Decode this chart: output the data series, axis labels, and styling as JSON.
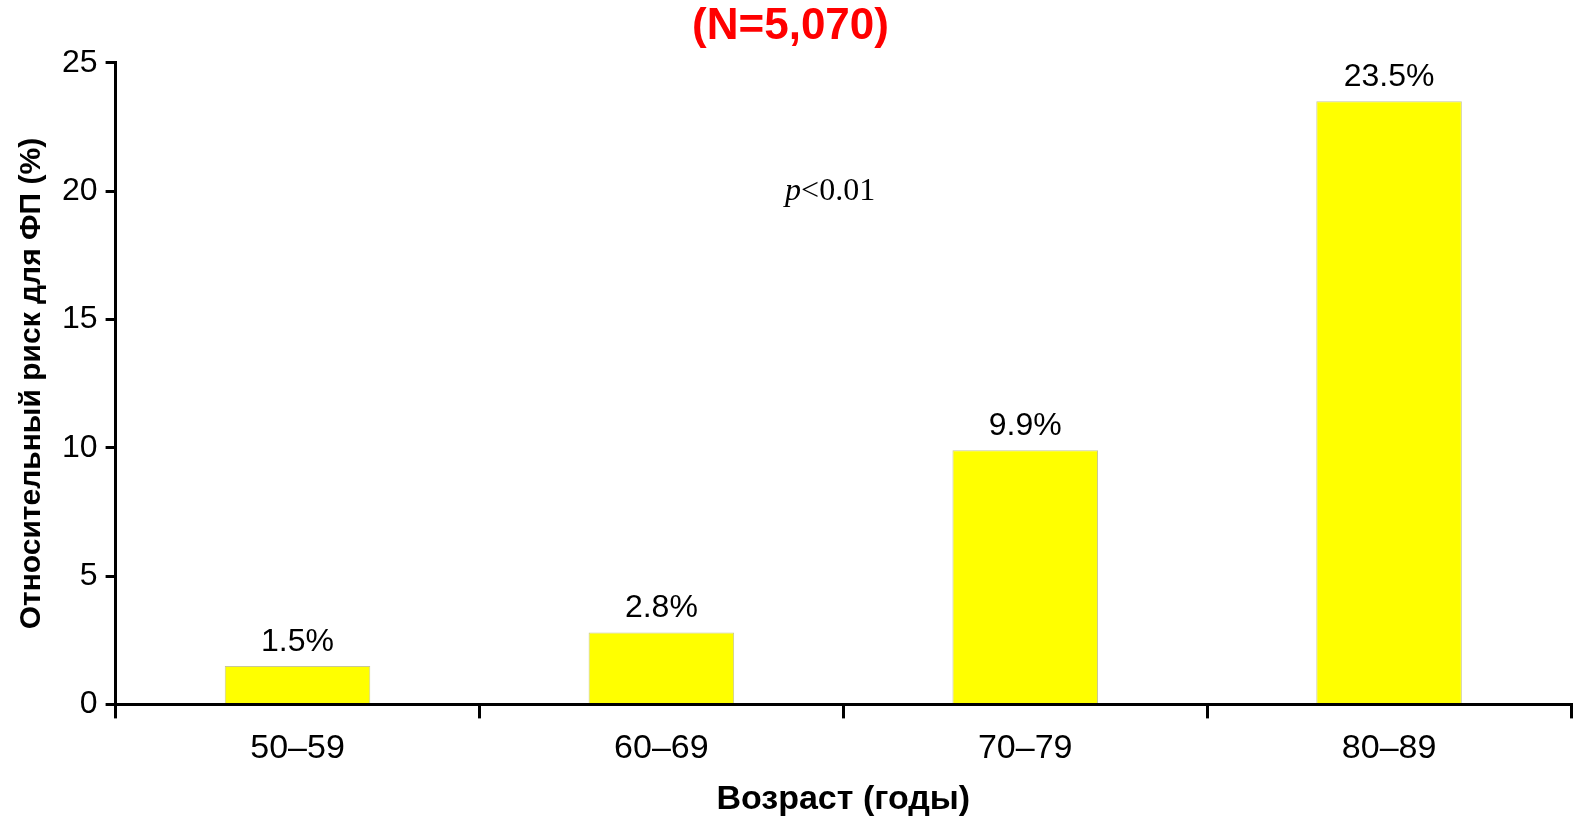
{
  "chart_data": {
    "type": "bar",
    "title": "(N=5,070)",
    "xlabel": "Возраст (годы)",
    "ylabel": "Относительный риск для ФП (%)",
    "categories": [
      "50–59",
      "60–69",
      "70–79",
      "80–89"
    ],
    "values": [
      1.5,
      2.8,
      9.9,
      23.5
    ],
    "value_labels": [
      "1.5%",
      "2.8%",
      "9.9%",
      "23.5%"
    ],
    "color": "#ffff00",
    "ylim": [
      0,
      25
    ],
    "yticks": [
      0,
      5,
      10,
      15,
      20,
      25
    ],
    "annotations": [
      "p<0.01"
    ],
    "grid": false,
    "legend": false
  }
}
